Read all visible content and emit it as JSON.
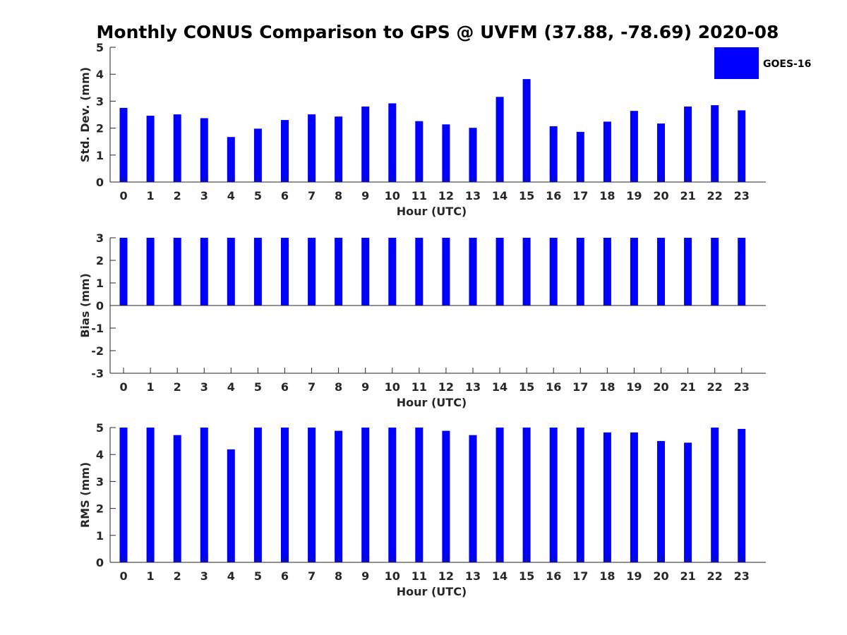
{
  "title": "Monthly CONUS Comparison to GPS @ UVFM (37.88, -78.69) 2020-08",
  "legend": {
    "label": "GOES-16",
    "color": "#0000ff"
  },
  "colors": {
    "bar": "#0000ff",
    "axis": "#262626"
  },
  "chart_data": [
    {
      "type": "bar",
      "name": "stddev",
      "ylabel": "Std. Dev. (mm)",
      "xlabel": "Hour (UTC)",
      "ylim": [
        0,
        5
      ],
      "yticks": [
        0,
        1,
        2,
        3,
        4,
        5
      ],
      "zero_line": false,
      "categories": [
        "0",
        "1",
        "2",
        "3",
        "4",
        "5",
        "6",
        "7",
        "8",
        "9",
        "10",
        "11",
        "12",
        "13",
        "14",
        "15",
        "16",
        "17",
        "18",
        "19",
        "20",
        "21",
        "22",
        "23"
      ],
      "series": [
        {
          "name": "GOES-16",
          "values": [
            2.75,
            2.46,
            2.51,
            2.37,
            1.67,
            1.98,
            2.3,
            2.51,
            2.43,
            2.8,
            2.92,
            2.26,
            2.14,
            2.01,
            3.16,
            3.82,
            2.07,
            1.86,
            2.24,
            2.64,
            2.17,
            2.8,
            2.85,
            2.66
          ]
        }
      ]
    },
    {
      "type": "bar",
      "name": "bias",
      "ylabel": "Bias (mm)",
      "xlabel": "Hour (UTC)",
      "ylim": [
        -3,
        3
      ],
      "yticks": [
        -3,
        -2,
        -1,
        0,
        1,
        2,
        3
      ],
      "zero_line": true,
      "categories": [
        "0",
        "1",
        "2",
        "3",
        "4",
        "5",
        "6",
        "7",
        "8",
        "9",
        "10",
        "11",
        "12",
        "13",
        "14",
        "15",
        "16",
        "17",
        "18",
        "19",
        "20",
        "21",
        "22",
        "23"
      ],
      "series": [
        {
          "name": "GOES-16",
          "values": [
            3,
            3,
            3,
            3,
            3,
            3,
            3,
            3,
            3,
            3,
            3,
            3,
            3,
            3,
            3,
            3,
            3,
            3,
            3,
            3,
            3,
            3,
            3,
            3
          ]
        }
      ]
    },
    {
      "type": "bar",
      "name": "rms",
      "ylabel": "RMS (mm)",
      "xlabel": "Hour (UTC)",
      "ylim": [
        0,
        5
      ],
      "yticks": [
        0,
        1,
        2,
        3,
        4,
        5
      ],
      "zero_line": false,
      "categories": [
        "0",
        "1",
        "2",
        "3",
        "4",
        "5",
        "6",
        "7",
        "8",
        "9",
        "10",
        "11",
        "12",
        "13",
        "14",
        "15",
        "16",
        "17",
        "18",
        "19",
        "20",
        "21",
        "22",
        "23"
      ],
      "series": [
        {
          "name": "GOES-16",
          "values": [
            5,
            5,
            4.72,
            5,
            4.19,
            5,
            5,
            5,
            4.88,
            5,
            5,
            5,
            4.88,
            4.72,
            5,
            5,
            5,
            5,
            4.82,
            4.82,
            4.5,
            4.44,
            5,
            4.95
          ]
        }
      ]
    }
  ]
}
